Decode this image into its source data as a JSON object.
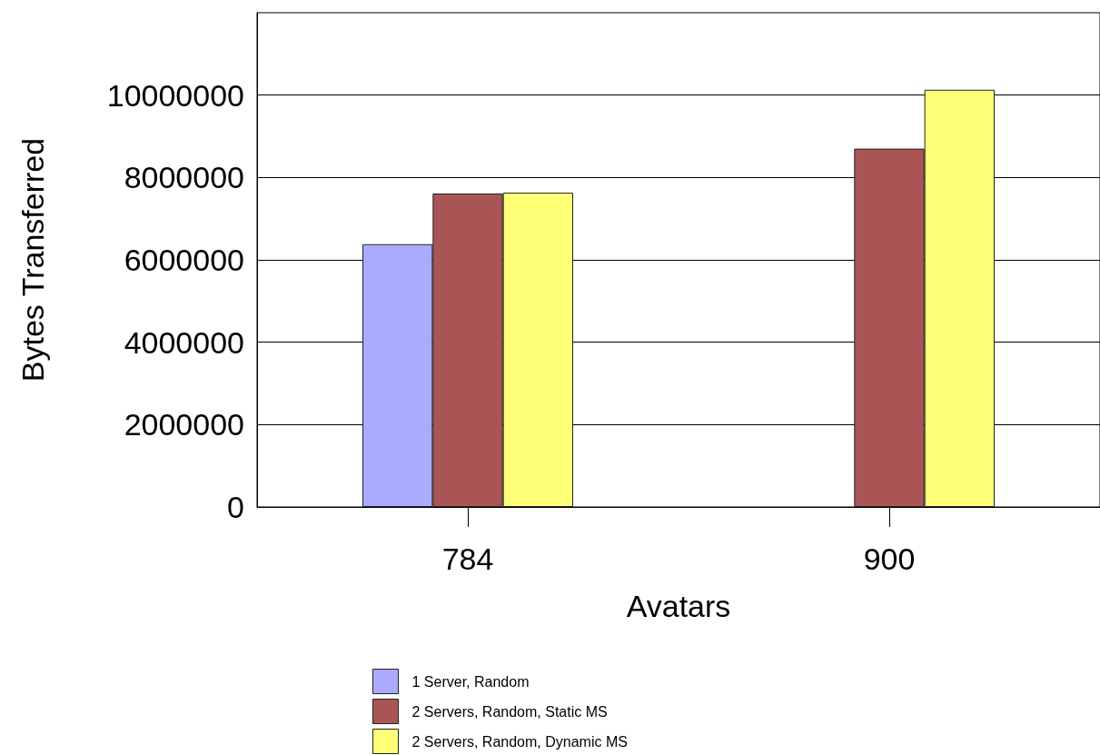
{
  "chart_data": {
    "type": "bar",
    "xlabel": "Avatars",
    "ylabel": "Bytes Transferred",
    "categories": [
      "784",
      "900"
    ],
    "series": [
      {
        "name": "1 Server, Random",
        "color": "#aaaaff",
        "values": [
          6380000,
          null
        ]
      },
      {
        "name": "2 Servers, Random, Static MS",
        "color": "#aa5555",
        "values": [
          7610000,
          8700000
        ]
      },
      {
        "name": "2 Servers, Random, Dynamic MS",
        "color": "#ffff77",
        "values": [
          7630000,
          10130000
        ]
      }
    ],
    "ylim": [
      0,
      12000000
    ],
    "yticks": [
      0,
      2000000,
      4000000,
      6000000,
      8000000,
      10000000
    ],
    "grid": "y",
    "legend": "bottom"
  }
}
